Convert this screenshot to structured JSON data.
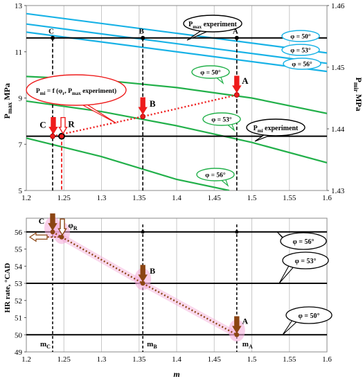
{
  "chart_data": [
    {
      "type": "line",
      "xlim": [
        1.2,
        1.6
      ],
      "ylim": [
        5,
        13
      ],
      "y2lim": [
        1.43,
        1.46
      ],
      "xticks": [
        "1.2",
        "1.25",
        "1.3",
        "1.35",
        "1.4",
        "1.45",
        "1.5",
        "1.55",
        "1.6"
      ],
      "yticks": [
        "5",
        "7",
        "9",
        "11",
        "13"
      ],
      "y2ticks": [
        "1.43",
        "1.44",
        "1.45",
        "1.46"
      ],
      "ylabel": "P<sub>max</sub> MPa",
      "ylabel_main": "P",
      "ylabel_sub": "max",
      "ylabel_unit": " MPa",
      "y2label_main": "P",
      "y2label_sub": "mir",
      "y2label_unit": " MPa",
      "grid": "vertical",
      "pmax_series": [
        {
          "name": "φ = 50°",
          "x": [
            1.2,
            1.6
          ],
          "y": [
            12.65,
            10.95
          ]
        },
        {
          "name": "φ = 53°",
          "x": [
            1.2,
            1.6
          ],
          "y": [
            12.2,
            10.5
          ]
        },
        {
          "name": "φ = 56°",
          "x": [
            1.2,
            1.6
          ],
          "y": [
            11.85,
            10.15
          ]
        }
      ],
      "pmir_series": [
        {
          "name": "φ = 50°",
          "x": [
            1.2,
            1.3,
            1.4,
            1.5,
            1.6
          ],
          "y": [
            1.4485,
            1.4479,
            1.4467,
            1.445,
            1.4425
          ]
        },
        {
          "name": "φ = 53°",
          "x": [
            1.2,
            1.3,
            1.4,
            1.5,
            1.6
          ],
          "y": [
            1.4445,
            1.4428,
            1.4405,
            1.4378,
            1.4345
          ]
        },
        {
          "name": "φ = 56°",
          "x": [
            1.2,
            1.3,
            1.4,
            1.47
          ],
          "y": [
            1.4385,
            1.4355,
            1.4318,
            1.43
          ]
        }
      ],
      "pmax_experiment": {
        "label_main": "P",
        "label_sub": "max",
        "label_rest": " experiment",
        "y": 11.6
      },
      "pmir_experiment": {
        "label_main": "P",
        "label_sub": "mi",
        "label_rest": " experiment",
        "y2": 1.4388
      },
      "fit_line": {
        "label": "P<sub>mi</sub> = f (φ<sub>r</sub>, P<sub>max</sub> experiment)",
        "label_main": "P",
        "label_sub": "mi",
        "label_rest": " = f (φ",
        "label_sub2": "r",
        "label_rest2": ", P",
        "label_sub3": "max",
        "label_rest3": " experiment)",
        "x": [
          1.235,
          1.355,
          1.48
        ],
        "y2": [
          1.4388,
          1.442,
          1.4455
        ]
      },
      "points": [
        {
          "name": "C",
          "x": 1.235,
          "y_top": 11.6,
          "y2": 1.4388
        },
        {
          "name": "B",
          "x": 1.355,
          "y_top": 11.6,
          "y2": 1.442
        },
        {
          "name": "A",
          "x": 1.48,
          "y_top": 11.6,
          "y2": 1.4455
        },
        {
          "name": "R",
          "x": 1.247,
          "y2": 1.4388
        }
      ],
      "legend": [
        "φ = 50°",
        "φ = 53°",
        "φ = 56°"
      ]
    },
    {
      "type": "line",
      "xlim": [
        1.2,
        1.6
      ],
      "ylim": [
        49,
        56.8
      ],
      "xticks": [
        "1.2",
        "1.25",
        "1.3",
        "1.35",
        "1.4",
        "1.45",
        "1.5",
        "1.55",
        "1.6"
      ],
      "yticks": [
        "49",
        "50",
        "51",
        "52",
        "53",
        "54",
        "55",
        "56"
      ],
      "xlabel": "m",
      "ylabel": "HR rate, °CAD",
      "hlines": [
        {
          "name": "φ = 56°",
          "y": 56
        },
        {
          "name": "φ = 53°",
          "y": 53
        },
        {
          "name": "φ = 50°",
          "y": 50
        }
      ],
      "vlines": [
        {
          "name": "m",
          "sub": "C",
          "x": 1.235
        },
        {
          "name": "m",
          "sub": "B",
          "x": 1.355
        },
        {
          "name": "m",
          "sub": "A",
          "x": 1.48
        }
      ],
      "fit_line": {
        "x": [
          1.235,
          1.247,
          1.355,
          1.48
        ],
        "y": [
          56,
          55.7,
          53,
          50
        ]
      },
      "points": [
        {
          "name": "C",
          "x": 1.235,
          "y": 56
        },
        {
          "name": "φR",
          "x": 1.247,
          "y": 55.7
        },
        {
          "name": "B",
          "x": 1.355,
          "y": 53
        },
        {
          "name": "A",
          "x": 1.48,
          "y": 50
        }
      ],
      "phi_r_label": {
        "main": "φ",
        "sub": "R"
      }
    }
  ],
  "colors": {
    "cyan": "#18b2e6",
    "green": "#22b04a",
    "red": "#ee1c1c",
    "brown": "#8b4513",
    "pink": "#f4a9d8"
  }
}
